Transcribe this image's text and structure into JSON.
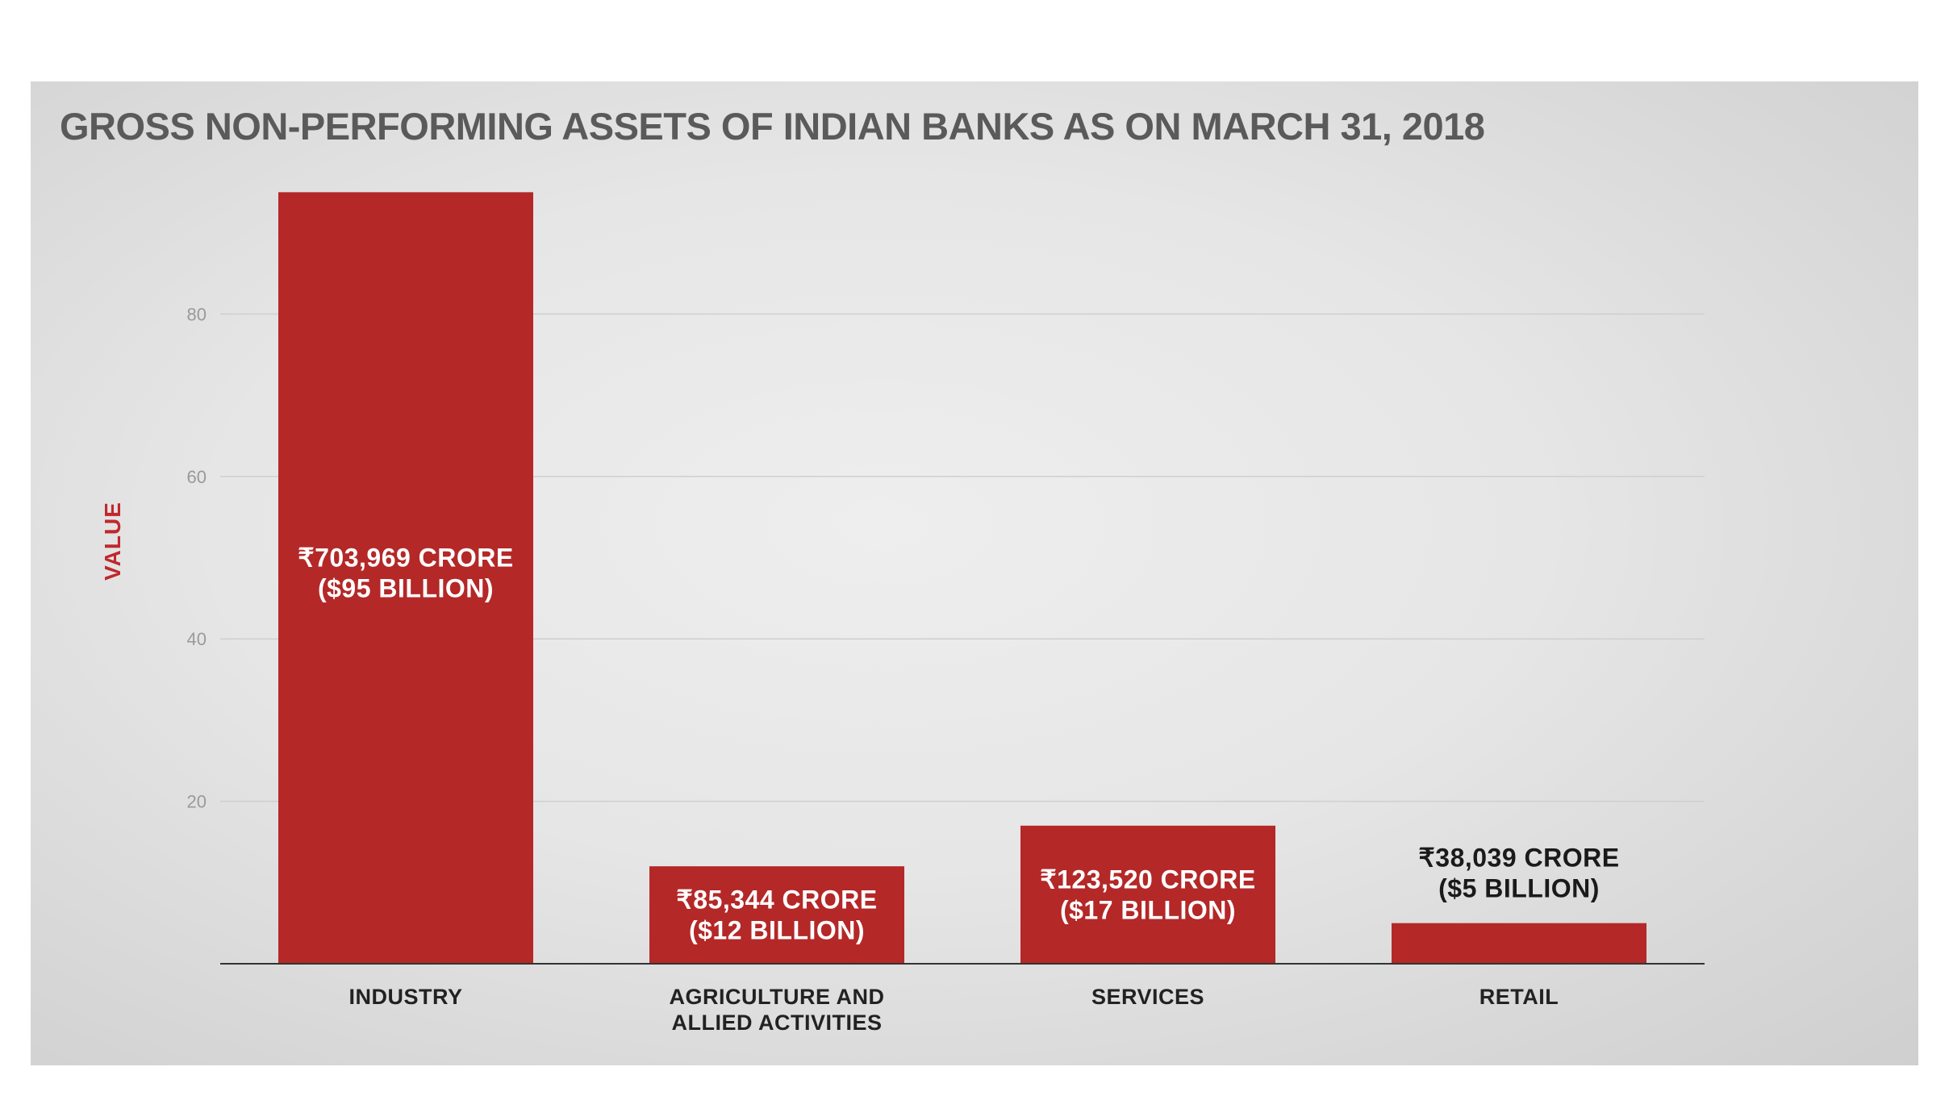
{
  "colors": {
    "bar": "#b42828",
    "title": "#5a5a5a",
    "axis_label": "#c0282d",
    "label_on_bar": "#ffffff",
    "label_above_bar": "#1a1a1a"
  },
  "chart_data": {
    "type": "bar",
    "title": "GROSS NON-PERFORMING ASSETS OF INDIAN BANKS AS ON MARCH 31, 2018",
    "xlabel": "",
    "ylabel": "VALUE",
    "ylim": [
      0,
      95
    ],
    "yticks": [
      20,
      40,
      60,
      80
    ],
    "grid": true,
    "categories": [
      [
        "INDUSTRY"
      ],
      [
        "AGRICULTURE AND",
        "ALLIED ACTIVITIES"
      ],
      [
        "SERVICES"
      ],
      [
        "RETAIL"
      ]
    ],
    "values": [
      95,
      12,
      17,
      5
    ],
    "data_labels": [
      [
        "₹703,969 CRORE",
        "($95  BILLION)"
      ],
      [
        "₹85,344 CRORE",
        "($12 BILLION)"
      ],
      [
        "₹123,520 CRORE",
        "($17 BILLION)"
      ],
      [
        "₹38,039 CRORE",
        "($5 BILLION)"
      ]
    ],
    "data_label_position": [
      "inside",
      "inside",
      "inside",
      "above"
    ]
  }
}
